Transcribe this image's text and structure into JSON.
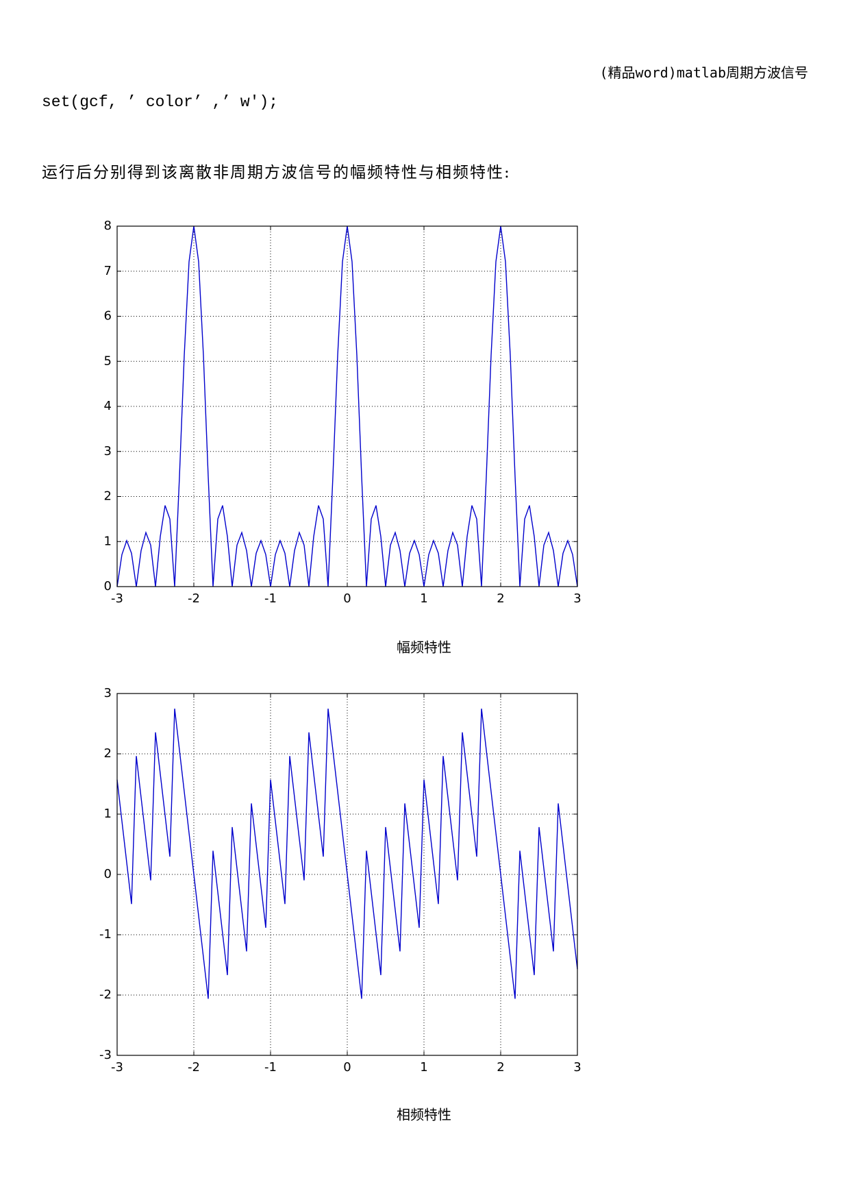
{
  "header": "(精品word)matlab周期方波信号",
  "code": "set(gcf, ’ color’ ,’ w');",
  "paragraph": "运行后分别得到该离散非周期方波信号的幅频特性与相频特性:",
  "chart_data": [
    {
      "type": "line",
      "caption": "幅频特性",
      "color": "#0000cc",
      "grid": true,
      "x": [
        -3,
        -2.9375,
        -2.875,
        -2.8125,
        -2.75,
        -2.6875,
        -2.625,
        -2.5625,
        -2.5,
        -2.4375,
        -2.375,
        -2.3125,
        -2.25,
        -2.1875,
        -2.125,
        -2.0625,
        -2,
        -1.9375,
        -1.875,
        -1.8125,
        -1.75,
        -1.6875,
        -1.625,
        -1.5625,
        -1.5,
        -1.4375,
        -1.375,
        -1.3125,
        -1.25,
        -1.1875,
        -1.125,
        -1.0625,
        -1,
        -0.9375,
        -0.875,
        -0.8125,
        -0.75,
        -0.6875,
        -0.625,
        -0.5625,
        -0.5,
        -0.4375,
        -0.375,
        -0.3125,
        -0.25,
        -0.1875,
        -0.125,
        -0.0625,
        0,
        0.0625,
        0.125,
        0.1875,
        0.25,
        0.3125,
        0.375,
        0.4375,
        0.5,
        0.5625,
        0.625,
        0.6875,
        0.75,
        0.8125,
        0.875,
        0.9375,
        1,
        1.0625,
        1.125,
        1.1875,
        1.25,
        1.3125,
        1.375,
        1.4375,
        1.5,
        1.5625,
        1.625,
        1.6875,
        1.75,
        1.8125,
        1.875,
        1.9375,
        2,
        2.0625,
        2.125,
        2.1875,
        2.25,
        2.3125,
        2.375,
        2.4375,
        2.5,
        2.5625,
        2.625,
        2.6875,
        2.75,
        2.8125,
        2.875,
        2.9375,
        3
      ],
      "values": [
        0,
        0.71,
        1.02,
        0.74,
        0,
        0.8,
        1.2,
        0.92,
        0,
        1.11,
        1.8,
        1.5,
        0,
        2.44,
        5.13,
        7.21,
        8,
        7.21,
        5.13,
        2.44,
        0,
        1.5,
        1.8,
        1.11,
        0,
        0.92,
        1.2,
        0.8,
        0,
        0.74,
        1.02,
        0.71,
        0,
        0.71,
        1.02,
        0.74,
        0,
        0.8,
        1.2,
        0.92,
        0,
        1.11,
        1.8,
        1.5,
        0,
        2.44,
        5.13,
        7.21,
        8,
        7.21,
        5.13,
        2.44,
        0,
        1.5,
        1.8,
        1.11,
        0,
        0.92,
        1.2,
        0.8,
        0,
        0.74,
        1.02,
        0.71,
        0,
        0.71,
        1.02,
        0.74,
        0,
        0.8,
        1.2,
        0.92,
        0,
        1.11,
        1.8,
        1.5,
        0,
        2.44,
        5.13,
        7.21,
        8,
        7.21,
        5.13,
        2.44,
        0,
        1.5,
        1.8,
        1.11,
        0,
        0.92,
        1.2,
        0.8,
        0,
        0.74,
        1.02,
        0.71,
        0
      ],
      "xlim": [
        -3,
        3
      ],
      "xticks": [
        -3,
        -2,
        -1,
        0,
        1,
        2,
        3
      ],
      "ylim": [
        0,
        8
      ],
      "yticks": [
        0,
        1,
        2,
        3,
        4,
        5,
        6,
        7,
        8
      ]
    },
    {
      "type": "line",
      "caption": "相频特性",
      "color": "#0000cc",
      "grid": true,
      "x": [
        -3,
        -2.9375,
        -2.875,
        -2.8125,
        -2.75,
        -2.6875,
        -2.625,
        -2.5625,
        -2.5,
        -2.4375,
        -2.375,
        -2.3125,
        -2.25,
        -2.1875,
        -2.125,
        -2.0625,
        -2,
        -1.9375,
        -1.875,
        -1.8125,
        -1.75,
        -1.6875,
        -1.625,
        -1.5625,
        -1.5,
        -1.4375,
        -1.375,
        -1.3125,
        -1.25,
        -1.1875,
        -1.125,
        -1.0625,
        -1,
        -0.9375,
        -0.875,
        -0.8125,
        -0.75,
        -0.6875,
        -0.625,
        -0.5625,
        -0.5,
        -0.4375,
        -0.375,
        -0.3125,
        -0.25,
        -0.1875,
        -0.125,
        -0.0625,
        0,
        0.0625,
        0.125,
        0.1875,
        0.25,
        0.3125,
        0.375,
        0.4375,
        0.5,
        0.5625,
        0.625,
        0.6875,
        0.75,
        0.8125,
        0.875,
        0.9375,
        1,
        1.0625,
        1.125,
        1.1875,
        1.25,
        1.3125,
        1.375,
        1.4375,
        1.5,
        1.5625,
        1.625,
        1.6875,
        1.75,
        1.8125,
        1.875,
        1.9375,
        2,
        2.0625,
        2.125,
        2.1875,
        2.25,
        2.3125,
        2.375,
        2.4375,
        2.5,
        2.5625,
        2.625,
        2.6875,
        2.75,
        2.8125,
        2.875,
        2.9375,
        3
      ],
      "values": [
        1.571,
        0.884,
        0.196,
        -0.491,
        1.963,
        1.276,
        0.589,
        -0.098,
        2.356,
        1.669,
        0.982,
        0.295,
        2.749,
        2.062,
        1.374,
        0.687,
        0,
        -0.687,
        -1.374,
        -2.062,
        0.393,
        -0.295,
        -0.982,
        -1.669,
        0.785,
        0.098,
        -0.589,
        -1.276,
        1.178,
        0.491,
        -0.196,
        -0.884,
        1.571,
        0.884,
        0.196,
        -0.491,
        1.963,
        1.276,
        0.589,
        -0.098,
        2.356,
        1.669,
        0.982,
        0.295,
        2.749,
        2.062,
        1.374,
        0.687,
        0,
        -0.687,
        -1.374,
        -2.062,
        0.393,
        -0.295,
        -0.982,
        -1.669,
        0.785,
        0.098,
        -0.589,
        -1.276,
        1.178,
        0.491,
        -0.196,
        -0.884,
        1.571,
        0.884,
        0.196,
        -0.491,
        1.963,
        1.276,
        0.589,
        -0.098,
        2.356,
        1.669,
        0.982,
        0.295,
        2.749,
        2.062,
        1.374,
        0.687,
        0,
        -0.687,
        -1.374,
        -2.062,
        0.393,
        -0.295,
        -0.982,
        -1.669,
        0.785,
        0.098,
        -0.589,
        -1.276,
        1.178,
        0.491,
        -0.196,
        -0.884,
        -1.571
      ],
      "xlim": [
        -3,
        3
      ],
      "xticks": [
        -3,
        -2,
        -1,
        0,
        1,
        2,
        3
      ],
      "ylim": [
        -3,
        3
      ],
      "yticks": [
        -3,
        -2,
        -1,
        0,
        1,
        2,
        3
      ]
    }
  ]
}
